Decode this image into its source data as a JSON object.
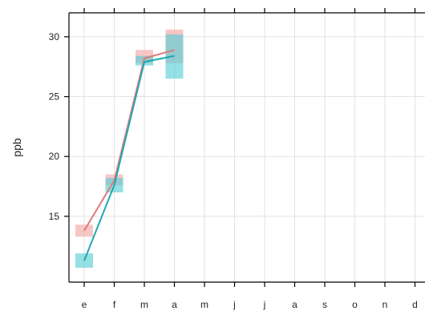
{
  "chart_data": {
    "type": "line",
    "title": "",
    "xlabel": "",
    "ylabel": "ppb",
    "categories": [
      "e",
      "f",
      "m",
      "a",
      "m",
      "j",
      "j",
      "a",
      "s",
      "o",
      "n",
      "d"
    ],
    "ylim": [
      9.5,
      32
    ],
    "yticks": [
      15,
      20,
      25,
      30
    ],
    "grid": true,
    "series": [
      {
        "color": "#e07a7a",
        "band_color": "#f2a8a8",
        "values": [
          13.8,
          18.0,
          28.2,
          28.9,
          null,
          null,
          null,
          null,
          null,
          null,
          null,
          null
        ],
        "band_low": [
          13.3,
          17.6,
          27.8,
          27.8,
          null,
          null,
          null,
          null,
          null,
          null,
          null,
          null
        ],
        "band_high": [
          14.3,
          18.5,
          28.9,
          30.6,
          null,
          null,
          null,
          null,
          null,
          null,
          null,
          null
        ]
      },
      {
        "color": "#1fa8b0",
        "band_color": "#5cd0d6",
        "values": [
          11.3,
          17.6,
          27.9,
          28.4,
          null,
          null,
          null,
          null,
          null,
          null,
          null,
          null
        ],
        "band_low": [
          10.7,
          17.0,
          27.6,
          26.5,
          null,
          null,
          null,
          null,
          null,
          null,
          null,
          null
        ],
        "band_high": [
          11.9,
          18.2,
          28.4,
          30.2,
          null,
          null,
          null,
          null,
          null,
          null,
          null,
          null
        ]
      }
    ]
  }
}
